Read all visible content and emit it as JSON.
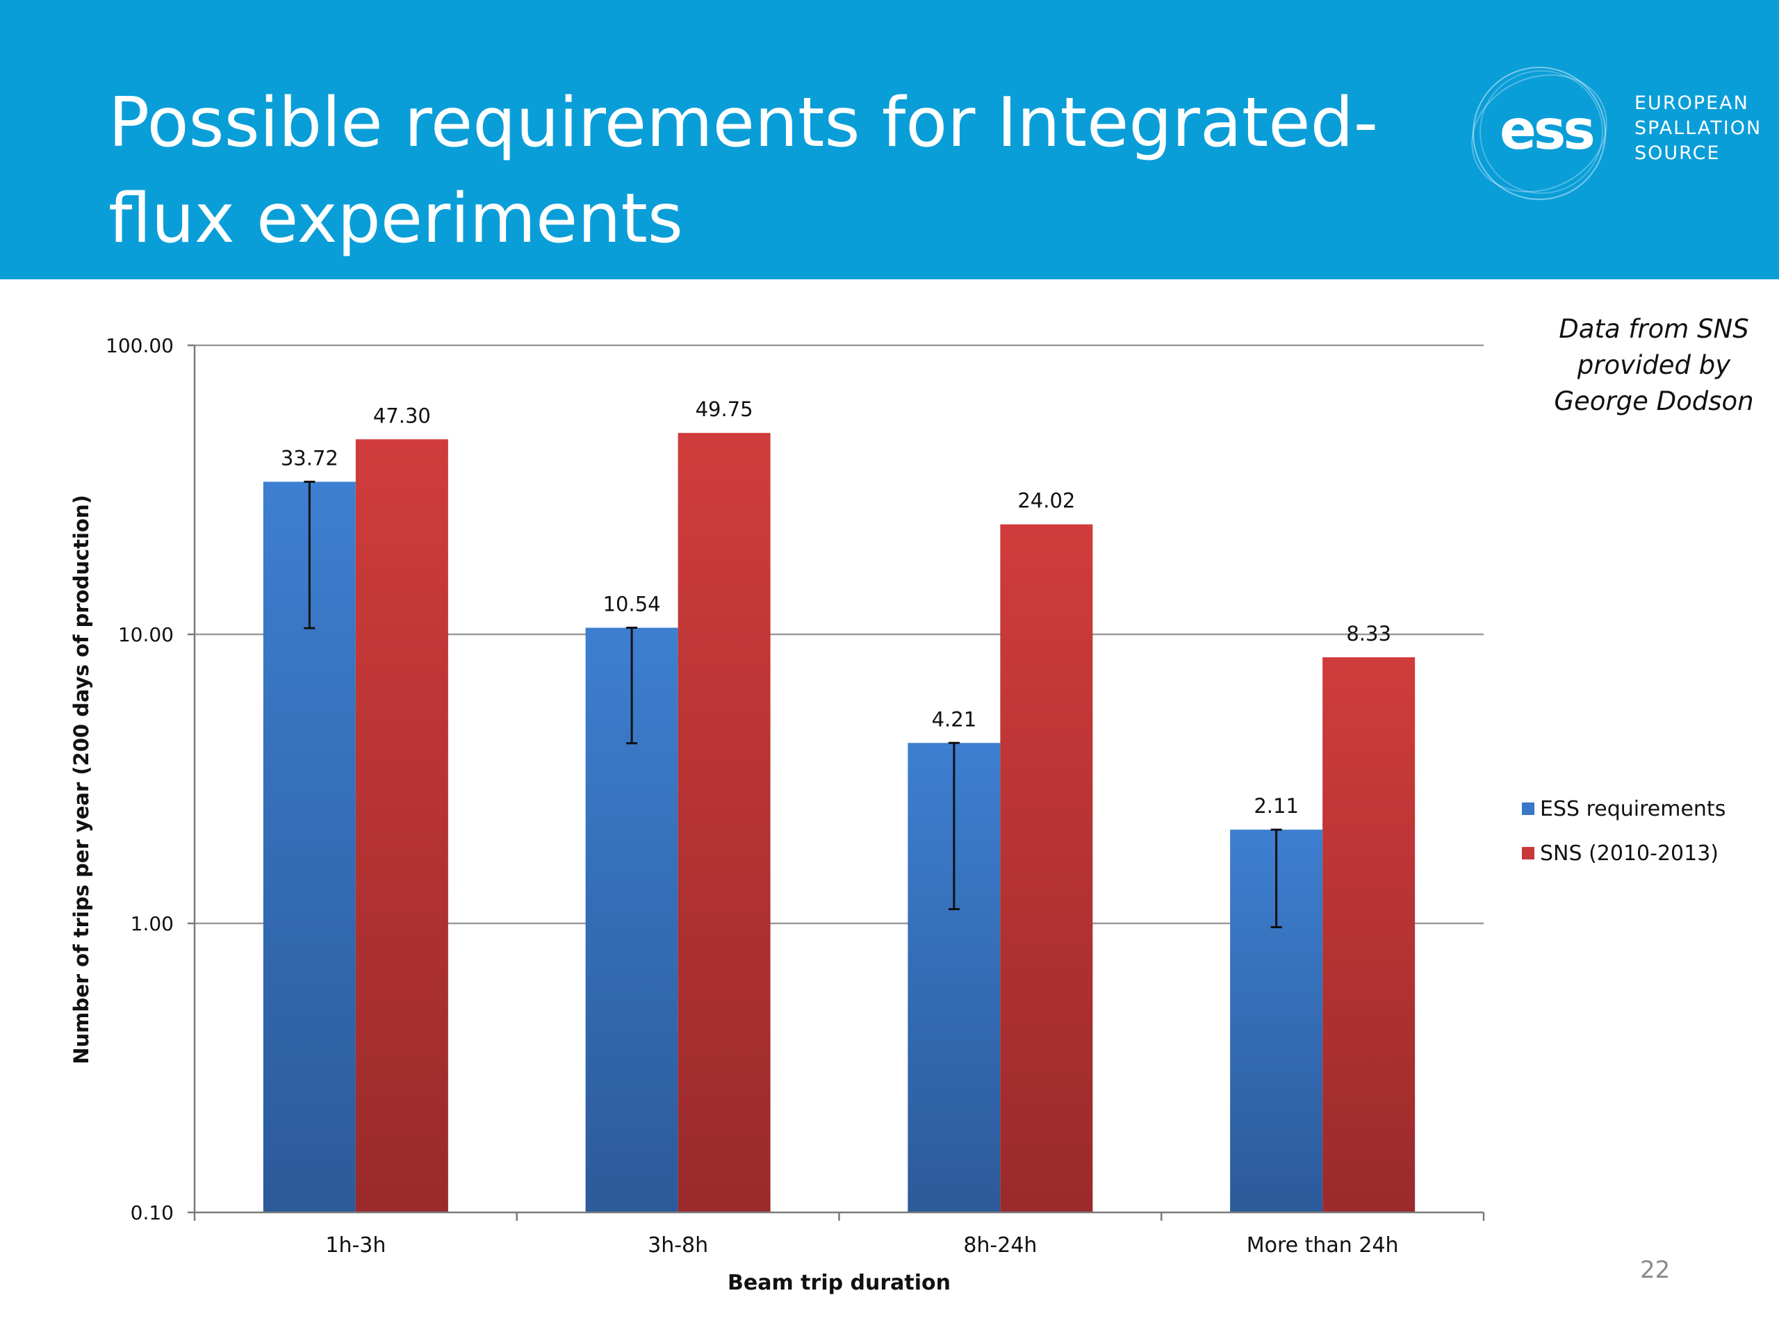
{
  "slide": {
    "title": "Possible requirements for Integrated-flux experiments",
    "page_number": "22",
    "note": "Data from SNS provided by George Dodson"
  },
  "logo": {
    "wordmark": "ess",
    "lines": [
      "EUROPEAN",
      "SPALLATION",
      "SOURCE"
    ]
  },
  "colors": {
    "header": "#0a9ed8",
    "ess_series": "#3a78c7",
    "sns_series": "#c8393a"
  },
  "chart_data": {
    "type": "bar",
    "categories": [
      "1h-3h",
      "3h-8h",
      "8h-24h",
      "More than 24h"
    ],
    "series": [
      {
        "name": "ESS requirements",
        "values": [
          33.72,
          10.54,
          4.21,
          2.11
        ],
        "labels": [
          "33.72",
          "10.54",
          "4.21",
          "2.11"
        ],
        "error_low": [
          10.5,
          4.2,
          1.12,
          0.97
        ],
        "color": "#3a78c7"
      },
      {
        "name": "SNS (2010-2013)",
        "values": [
          47.3,
          49.75,
          24.02,
          8.33
        ],
        "labels": [
          "47.30",
          "49.75",
          "24.02",
          "8.33"
        ],
        "color": "#c8393a"
      }
    ],
    "xlabel": "Beam trip duration",
    "ylabel": "Number of trips per year (200 days of production)",
    "y_scale": "log",
    "ylim": [
      0.1,
      100
    ],
    "y_ticks": [
      0.1,
      1,
      10,
      100
    ],
    "y_tick_labels": [
      "0.10",
      "1.00",
      "10.00",
      "100.00"
    ],
    "grid": "horizontal",
    "legend_position": "right"
  }
}
